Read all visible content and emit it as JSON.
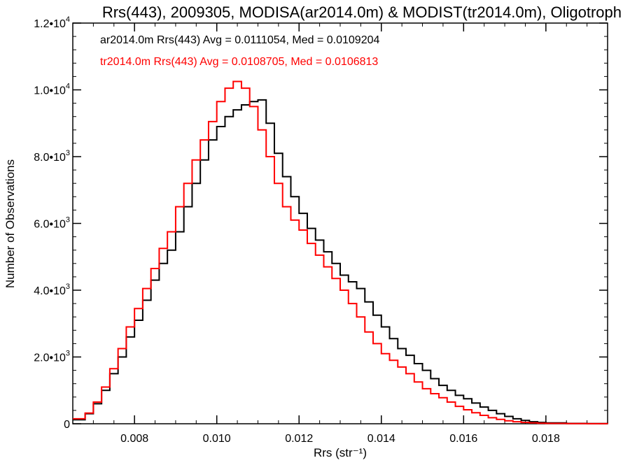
{
  "chart_data": {
    "type": "line",
    "title": "Rrs(443), 2009305, MODISA(ar2014.0m) & MODIST(tr2014.0m), Oligotroph",
    "xlabel": "Rrs (str⁻¹)",
    "ylabel": "Number of Observations",
    "xlim": [
      0.0065,
      0.0195
    ],
    "ylim": [
      0,
      12000
    ],
    "step": true,
    "grid": false,
    "legend_position": "top-left",
    "x_ticks": [
      {
        "value": 0.008,
        "label": "0.008"
      },
      {
        "value": 0.01,
        "label": "0.010"
      },
      {
        "value": 0.012,
        "label": "0.012"
      },
      {
        "value": 0.014,
        "label": "0.014"
      },
      {
        "value": 0.016,
        "label": "0.016"
      },
      {
        "value": 0.018,
        "label": "0.018"
      }
    ],
    "y_ticks": [
      {
        "value": 0,
        "mant": "0",
        "exp": ""
      },
      {
        "value": 2000,
        "mant": "2.0•10",
        "exp": "3"
      },
      {
        "value": 4000,
        "mant": "4.0•10",
        "exp": "3"
      },
      {
        "value": 6000,
        "mant": "6.0•10",
        "exp": "3"
      },
      {
        "value": 8000,
        "mant": "8.0•10",
        "exp": "3"
      },
      {
        "value": 10000,
        "mant": "1.0•10",
        "exp": "4"
      },
      {
        "value": 12000,
        "mant": "1.2•10",
        "exp": "4"
      }
    ],
    "series": [
      {
        "name": "ar2014.0m Rrs(443) Avg = 0.0111054, Med = 0.0109204",
        "color": "#000000",
        "points": [
          [
            0.0065,
            120
          ],
          [
            0.0068,
            300
          ],
          [
            0.007,
            600
          ],
          [
            0.0072,
            1000
          ],
          [
            0.0074,
            1500
          ],
          [
            0.0076,
            2000
          ],
          [
            0.0078,
            2600
          ],
          [
            0.008,
            3100
          ],
          [
            0.0082,
            3700
          ],
          [
            0.0084,
            4300
          ],
          [
            0.0086,
            4800
          ],
          [
            0.0088,
            5200
          ],
          [
            0.009,
            5750
          ],
          [
            0.0092,
            6500
          ],
          [
            0.0094,
            7200
          ],
          [
            0.0096,
            7900
          ],
          [
            0.0098,
            8500
          ],
          [
            0.01,
            8900
          ],
          [
            0.0102,
            9200
          ],
          [
            0.0104,
            9400
          ],
          [
            0.0106,
            9550
          ],
          [
            0.0108,
            9650
          ],
          [
            0.011,
            9700
          ],
          [
            0.0112,
            9000
          ],
          [
            0.0114,
            8100
          ],
          [
            0.0116,
            7400
          ],
          [
            0.0118,
            6800
          ],
          [
            0.012,
            6300
          ],
          [
            0.0122,
            5850
          ],
          [
            0.0124,
            5500
          ],
          [
            0.0126,
            5150
          ],
          [
            0.0128,
            4800
          ],
          [
            0.013,
            4450
          ],
          [
            0.0132,
            4250
          ],
          [
            0.0134,
            4050
          ],
          [
            0.0136,
            3650
          ],
          [
            0.0138,
            3250
          ],
          [
            0.014,
            2900
          ],
          [
            0.0142,
            2550
          ],
          [
            0.0144,
            2250
          ],
          [
            0.0146,
            2050
          ],
          [
            0.0148,
            1800
          ],
          [
            0.015,
            1600
          ],
          [
            0.0152,
            1350
          ],
          [
            0.0154,
            1150
          ],
          [
            0.0156,
            1000
          ],
          [
            0.0158,
            850
          ],
          [
            0.016,
            750
          ],
          [
            0.0162,
            620
          ],
          [
            0.0164,
            500
          ],
          [
            0.0166,
            400
          ],
          [
            0.0168,
            300
          ],
          [
            0.017,
            220
          ],
          [
            0.0172,
            150
          ],
          [
            0.0174,
            100
          ],
          [
            0.0176,
            60
          ],
          [
            0.0178,
            40
          ],
          [
            0.018,
            25
          ],
          [
            0.0185,
            10
          ],
          [
            0.019,
            5
          ],
          [
            0.0195,
            3
          ]
        ]
      },
      {
        "name": "tr2014.0m Rrs(443) Avg = 0.0108705, Med = 0.0106813",
        "color": "#ff0000",
        "points": [
          [
            0.0065,
            150
          ],
          [
            0.0068,
            320
          ],
          [
            0.007,
            650
          ],
          [
            0.0072,
            1100
          ],
          [
            0.0074,
            1650
          ],
          [
            0.0076,
            2250
          ],
          [
            0.0078,
            2900
          ],
          [
            0.008,
            3450
          ],
          [
            0.0082,
            4050
          ],
          [
            0.0084,
            4650
          ],
          [
            0.0086,
            5250
          ],
          [
            0.0088,
            5750
          ],
          [
            0.009,
            6500
          ],
          [
            0.0092,
            7200
          ],
          [
            0.0094,
            7900
          ],
          [
            0.0096,
            8500
          ],
          [
            0.0098,
            9050
          ],
          [
            0.01,
            9650
          ],
          [
            0.0102,
            10050
          ],
          [
            0.0104,
            10250
          ],
          [
            0.0106,
            10050
          ],
          [
            0.0108,
            9500
          ],
          [
            0.011,
            8800
          ],
          [
            0.0112,
            8000
          ],
          [
            0.0114,
            7200
          ],
          [
            0.0116,
            6500
          ],
          [
            0.0118,
            6100
          ],
          [
            0.012,
            5800
          ],
          [
            0.0122,
            5400
          ],
          [
            0.0124,
            5050
          ],
          [
            0.0126,
            4700
          ],
          [
            0.0128,
            4350
          ],
          [
            0.013,
            4000
          ],
          [
            0.0132,
            3600
          ],
          [
            0.0134,
            3200
          ],
          [
            0.0136,
            2750
          ],
          [
            0.0138,
            2400
          ],
          [
            0.014,
            2100
          ],
          [
            0.0142,
            1900
          ],
          [
            0.0144,
            1700
          ],
          [
            0.0146,
            1500
          ],
          [
            0.0148,
            1250
          ],
          [
            0.015,
            1050
          ],
          [
            0.0152,
            900
          ],
          [
            0.0154,
            780
          ],
          [
            0.0156,
            650
          ],
          [
            0.0158,
            520
          ],
          [
            0.016,
            420
          ],
          [
            0.0162,
            330
          ],
          [
            0.0164,
            250
          ],
          [
            0.0166,
            180
          ],
          [
            0.0168,
            130
          ],
          [
            0.017,
            90
          ],
          [
            0.0172,
            60
          ],
          [
            0.0174,
            40
          ],
          [
            0.0176,
            25
          ],
          [
            0.0178,
            15
          ],
          [
            0.018,
            10
          ],
          [
            0.0185,
            5
          ],
          [
            0.019,
            2
          ],
          [
            0.0195,
            1
          ]
        ]
      }
    ]
  }
}
